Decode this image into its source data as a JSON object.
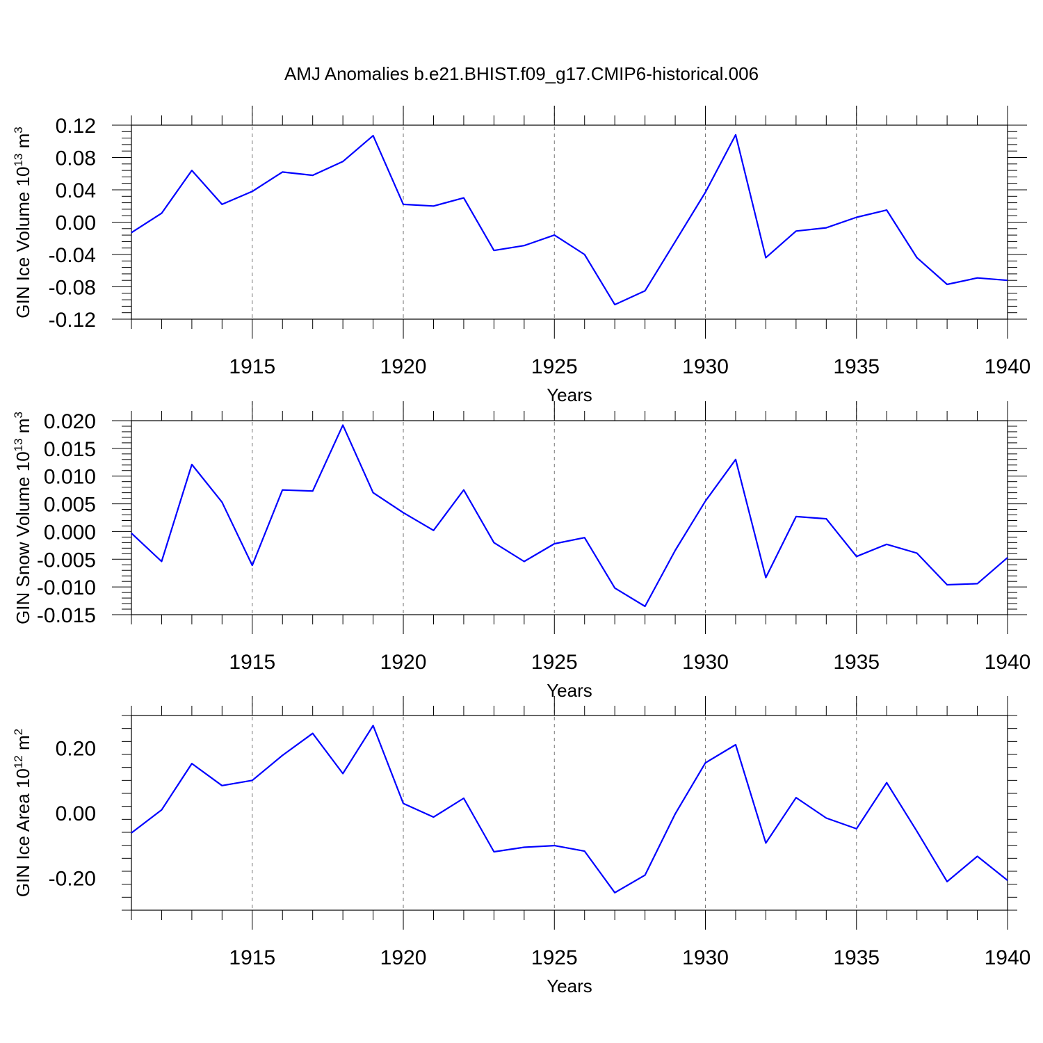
{
  "title": "AMJ Anomalies b.e21.BHIST.f09_g17.CMIP6-historical.006",
  "colors": {
    "line": "#0000ff",
    "axis": "#000000",
    "grid": "#777777"
  },
  "chart_data": [
    {
      "type": "line",
      "ylabel_main": "GIN Ice Volume 10",
      "ylabel_exp": "13",
      "ylabel_unit": " m",
      "ylabel_unit_exp": "3",
      "xlabel": "Years",
      "xlim": [
        1911,
        1940
      ],
      "ylim": [
        -0.12,
        0.12
      ],
      "xticks": [
        1915,
        1920,
        1925,
        1930,
        1935,
        1940
      ],
      "xtick_labels": [
        "1915",
        "1920",
        "1925",
        "1930",
        "1935",
        "1940"
      ],
      "yticks": [
        -0.12,
        -0.08,
        -0.04,
        0.0,
        0.04,
        0.08,
        0.12
      ],
      "ytick_labels": [
        "-0.12",
        "-0.08",
        "-0.04",
        "0.00",
        "0.04",
        "0.08",
        "0.12"
      ],
      "x": [
        1911,
        1912,
        1913,
        1914,
        1915,
        1916,
        1917,
        1918,
        1919,
        1920,
        1921,
        1922,
        1923,
        1924,
        1925,
        1926,
        1927,
        1928,
        1929,
        1930,
        1931,
        1932,
        1933,
        1934,
        1935,
        1936,
        1937,
        1938,
        1939,
        1940
      ],
      "series": [
        {
          "name": "GIN Ice Volume",
          "values": [
            -0.013,
            0.011,
            0.064,
            0.022,
            0.038,
            0.062,
            0.058,
            0.075,
            0.107,
            0.022,
            0.02,
            0.03,
            -0.035,
            -0.029,
            -0.016,
            -0.04,
            -0.102,
            -0.085,
            -0.024,
            0.037,
            0.108,
            -0.044,
            -0.011,
            -0.007,
            0.006,
            0.015,
            -0.044,
            -0.077,
            -0.069,
            -0.072
          ]
        }
      ]
    },
    {
      "type": "line",
      "ylabel_main": "GIN Snow Volume 10",
      "ylabel_exp": "13",
      "ylabel_unit": " m",
      "ylabel_unit_exp": "3",
      "xlabel": "Years",
      "xlim": [
        1911,
        1940
      ],
      "ylim": [
        -0.015,
        0.02
      ],
      "xticks": [
        1915,
        1920,
        1925,
        1930,
        1935,
        1940
      ],
      "xtick_labels": [
        "1915",
        "1920",
        "1925",
        "1930",
        "1935",
        "1940"
      ],
      "yticks": [
        -0.015,
        -0.01,
        -0.005,
        0.0,
        0.005,
        0.01,
        0.015,
        0.02
      ],
      "ytick_labels": [
        "-0.015",
        "-0.010",
        "-0.005",
        "0.000",
        "0.005",
        "0.010",
        "0.015",
        "0.020"
      ],
      "x": [
        1911,
        1912,
        1913,
        1914,
        1915,
        1916,
        1917,
        1918,
        1919,
        1920,
        1921,
        1922,
        1923,
        1924,
        1925,
        1926,
        1927,
        1928,
        1929,
        1930,
        1931,
        1932,
        1933,
        1934,
        1935,
        1936,
        1937,
        1938,
        1939,
        1940
      ],
      "series": [
        {
          "name": "GIN Snow Volume",
          "values": [
            -0.0003,
            -0.0054,
            0.0121,
            0.0053,
            -0.0061,
            0.0075,
            0.0073,
            0.0192,
            0.007,
            0.0034,
            0.0002,
            0.0075,
            -0.002,
            -0.0054,
            -0.0022,
            -0.0011,
            -0.0102,
            -0.0135,
            -0.0034,
            0.0055,
            0.013,
            -0.0083,
            0.0027,
            0.0023,
            -0.0045,
            -0.0023,
            -0.0039,
            -0.0096,
            -0.0094,
            -0.0047
          ]
        }
      ]
    },
    {
      "type": "line",
      "ylabel_main": "GIN Ice Area 10",
      "ylabel_exp": "12",
      "ylabel_unit": " m",
      "ylabel_unit_exp": "2",
      "xlabel": "Years",
      "xlim": [
        1911,
        1940
      ],
      "ylim": [
        -0.3,
        0.3
      ],
      "xticks": [
        1915,
        1920,
        1925,
        1930,
        1935,
        1940
      ],
      "xtick_labels": [
        "1915",
        "1920",
        "1925",
        "1930",
        "1935",
        "1940"
      ],
      "yticks": [
        -0.2,
        0.0,
        0.2
      ],
      "ytick_labels": [
        "-0.20",
        "0.00",
        "0.20"
      ],
      "x": [
        1911,
        1912,
        1913,
        1914,
        1915,
        1916,
        1917,
        1918,
        1919,
        1920,
        1921,
        1922,
        1923,
        1924,
        1925,
        1926,
        1927,
        1928,
        1929,
        1930,
        1931,
        1932,
        1933,
        1934,
        1935,
        1936,
        1937,
        1938,
        1939,
        1940
      ],
      "series": [
        {
          "name": "GIN Ice Area",
          "values": [
            -0.062,
            0.009,
            0.152,
            0.084,
            0.1,
            0.177,
            0.245,
            0.121,
            0.269,
            0.029,
            -0.013,
            0.045,
            -0.12,
            -0.106,
            -0.101,
            -0.118,
            -0.246,
            -0.192,
            -0.003,
            0.154,
            0.21,
            -0.093,
            0.047,
            -0.016,
            -0.049,
            0.093,
            -0.057,
            -0.212,
            -0.134,
            -0.208
          ]
        }
      ]
    }
  ]
}
